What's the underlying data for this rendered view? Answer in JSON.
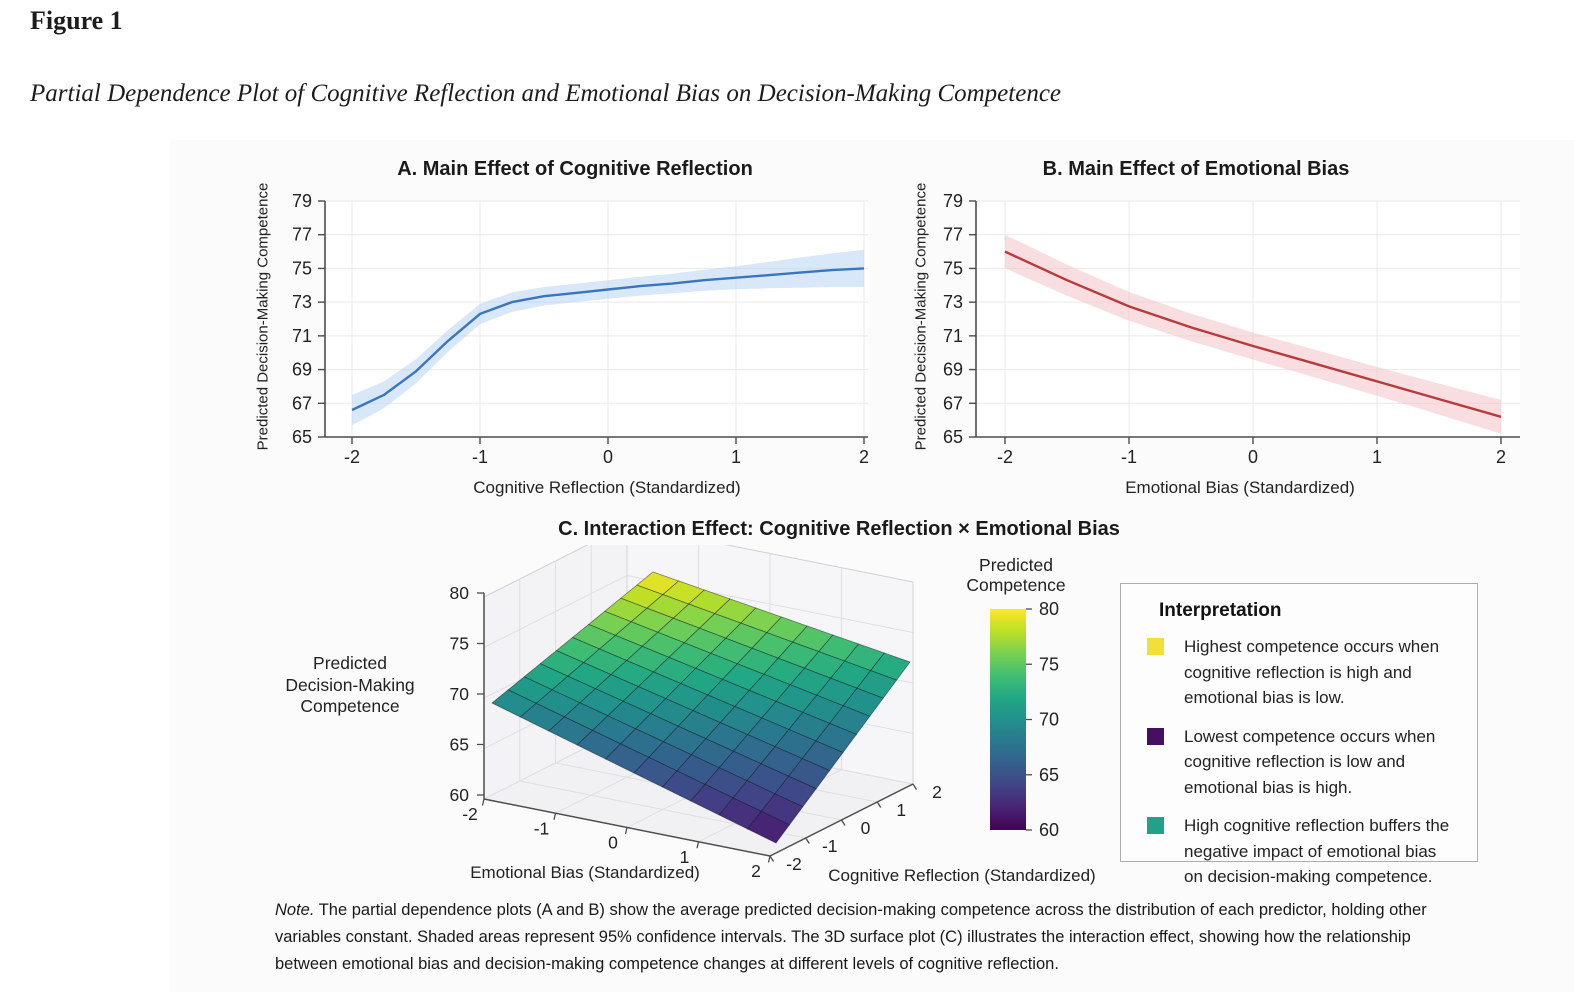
{
  "figure": {
    "label": "Figure 1",
    "caption": "Partial Dependence Plot of Cognitive Reflection and Emotional Bias on Decision-Making Competence"
  },
  "note": {
    "prefix": "Note.",
    "text": " The partial dependence plots (A and B) show the average predicted decision-making competence across the distribution of each predictor, holding other variables constant. Shaded areas represent 95% confidence intervals. The 3D surface plot (C) illustrates the interaction effect, showing how the relationship between emotional bias and decision-making competence changes at different levels of cognitive reflection."
  },
  "legend": {
    "title": "Interpretation",
    "items": [
      {
        "color": "#f2df3a",
        "text": "Highest competence occurs when cognitive reflection is high and emotional bias is low."
      },
      {
        "color": "#451060",
        "text": "Lowest competence occurs when cognitive reflection is low and emotional bias is high."
      },
      {
        "color": "#1fa287",
        "text": "High cognitive reflection buffers the negative impact of emotional bias on decision-making competence."
      }
    ]
  },
  "colorbar": {
    "title_line1": "Predicted",
    "title_line2": "Competence",
    "ticks": [
      80,
      75,
      70,
      65,
      60
    ]
  },
  "chart_data": [
    {
      "id": "panel_a",
      "type": "line",
      "title": "A. Main Effect of Cognitive Reflection",
      "xlabel": "Cognitive Reflection (Standardized)",
      "ylabel": "Predicted Decision-Making Competence",
      "xticks": [
        -2,
        -1,
        0,
        1,
        2
      ],
      "yticks": [
        65,
        67,
        69,
        71,
        73,
        75,
        77,
        79
      ],
      "ylim": [
        65,
        79
      ],
      "xlim": [
        -2.2,
        2.05
      ],
      "grid": true,
      "x": [
        -2,
        -1.75,
        -1.5,
        -1.25,
        -1,
        -0.75,
        -0.5,
        -0.25,
        0,
        0.25,
        0.5,
        0.75,
        1,
        1.25,
        1.5,
        1.75,
        2
      ],
      "y": [
        66.6,
        67.5,
        68.9,
        70.7,
        72.3,
        73.0,
        73.35,
        73.55,
        73.75,
        73.95,
        74.1,
        74.3,
        74.45,
        74.6,
        74.75,
        74.9,
        75.0
      ],
      "ci": [
        0.9,
        0.8,
        0.72,
        0.65,
        0.6,
        0.58,
        0.55,
        0.55,
        0.55,
        0.56,
        0.58,
        0.62,
        0.68,
        0.78,
        0.9,
        1.0,
        1.1
      ],
      "line_color": "#3a76bb",
      "band_color": "#b9d6f2"
    },
    {
      "id": "panel_b",
      "type": "line",
      "title": "B. Main Effect of Emotional Bias",
      "xlabel": "Emotional Bias (Standardized)",
      "ylabel": "Predicted Decision-Making Competence",
      "xticks": [
        -2,
        -1,
        0,
        1,
        2
      ],
      "yticks": [
        65,
        67,
        69,
        71,
        73,
        75,
        77,
        79
      ],
      "ylim": [
        65,
        79
      ],
      "xlim": [
        -2.2,
        2.1
      ],
      "grid": true,
      "x": [
        -2,
        -1.5,
        -1,
        -0.5,
        0,
        0.5,
        1,
        1.5,
        2
      ],
      "y": [
        76.0,
        74.3,
        72.75,
        71.5,
        70.4,
        69.35,
        68.3,
        67.25,
        66.2
      ],
      "ci": [
        1.0,
        0.92,
        0.85,
        0.82,
        0.8,
        0.82,
        0.85,
        0.92,
        1.0
      ],
      "line_color": "#b93a3c",
      "band_color": "#f2c3c6"
    },
    {
      "id": "panel_c",
      "type": "surface",
      "title": "C. Interaction Effect: Cognitive Reflection × Emotional Bias",
      "xlabel": "Emotional Bias (Standardized)",
      "ylabel": "Cognitive Reflection (Standardized)",
      "zlabel_lines": [
        "Predicted",
        "Decision-Making",
        "Competence"
      ],
      "xticks": [
        -2,
        -1,
        0,
        1,
        2
      ],
      "yticks": [
        -2,
        -1,
        0,
        1,
        2
      ],
      "zticks": [
        60,
        65,
        70,
        75,
        80
      ],
      "zlim": [
        60,
        80
      ],
      "grid_n": 10,
      "corner_z": {
        "eb_low_cr_low": 69.5,
        "eb_high_cr_low": 61.0,
        "eb_high_cr_high": 72.5,
        "eb_low_cr_high": 80.0
      },
      "colormap": "viridis",
      "colormap_stops": [
        [
          0.0,
          "#440154"
        ],
        [
          0.1,
          "#482475"
        ],
        [
          0.2,
          "#414487"
        ],
        [
          0.3,
          "#355f8d"
        ],
        [
          0.4,
          "#2a788e"
        ],
        [
          0.5,
          "#21918c"
        ],
        [
          0.6,
          "#22a884"
        ],
        [
          0.7,
          "#42be71"
        ],
        [
          0.8,
          "#7ad151"
        ],
        [
          0.9,
          "#bddf26"
        ],
        [
          1.0,
          "#fde725"
        ]
      ]
    }
  ]
}
